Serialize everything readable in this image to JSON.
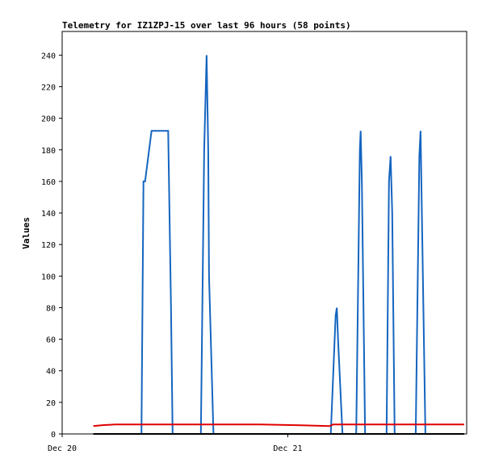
{
  "chart_data": {
    "type": "line",
    "title": "Telemetry for IZ1ZPJ-15 over last 96 hours (58 points)",
    "xlabel": "",
    "ylabel": "Values",
    "ylim": [
      0,
      255
    ],
    "xlim": [
      0,
      1
    ],
    "y_ticks": [
      0,
      20,
      40,
      60,
      80,
      100,
      120,
      140,
      160,
      180,
      200,
      220,
      240
    ],
    "x_tick_labels": [
      {
        "label": "Dec 20",
        "x": 0.0
      },
      {
        "label": "Dec 21",
        "x": 0.5578
      }
    ],
    "grid": false,
    "legend": false,
    "series": [
      {
        "color": "#1565c0",
        "x": [
          0.077,
          0.196,
          0.201,
          0.205,
          0.221,
          0.226,
          0.235,
          0.262,
          0.269,
          0.273,
          0.343,
          0.351,
          0.357,
          0.361,
          0.363,
          0.374,
          0.664,
          0.676,
          0.679,
          0.682,
          0.693,
          0.727,
          0.736,
          0.738,
          0.741,
          0.749,
          0.802,
          0.808,
          0.812,
          0.816,
          0.822,
          0.874,
          0.883,
          0.886,
          0.888,
          0.898,
          0.994
        ],
        "y": [
          0,
          0,
          160,
          160,
          192,
          192,
          192,
          192,
          80,
          0,
          0,
          180,
          240,
          180,
          100,
          0,
          0,
          75,
          80,
          60,
          0,
          0,
          180,
          192,
          160,
          0,
          0,
          160,
          176,
          140,
          0,
          0,
          176,
          192,
          160,
          0,
          0
        ]
      },
      {
        "color": "#e00000",
        "x": [
          0.077,
          0.097,
          0.132,
          0.49,
          0.588,
          0.661,
          0.67,
          0.994
        ],
        "y": [
          5,
          5.5,
          6,
          6,
          5.5,
          5,
          6,
          6
        ]
      },
      {
        "color": "#000000",
        "x": [
          0.077,
          0.994
        ],
        "y": [
          0,
          0
        ]
      }
    ]
  }
}
